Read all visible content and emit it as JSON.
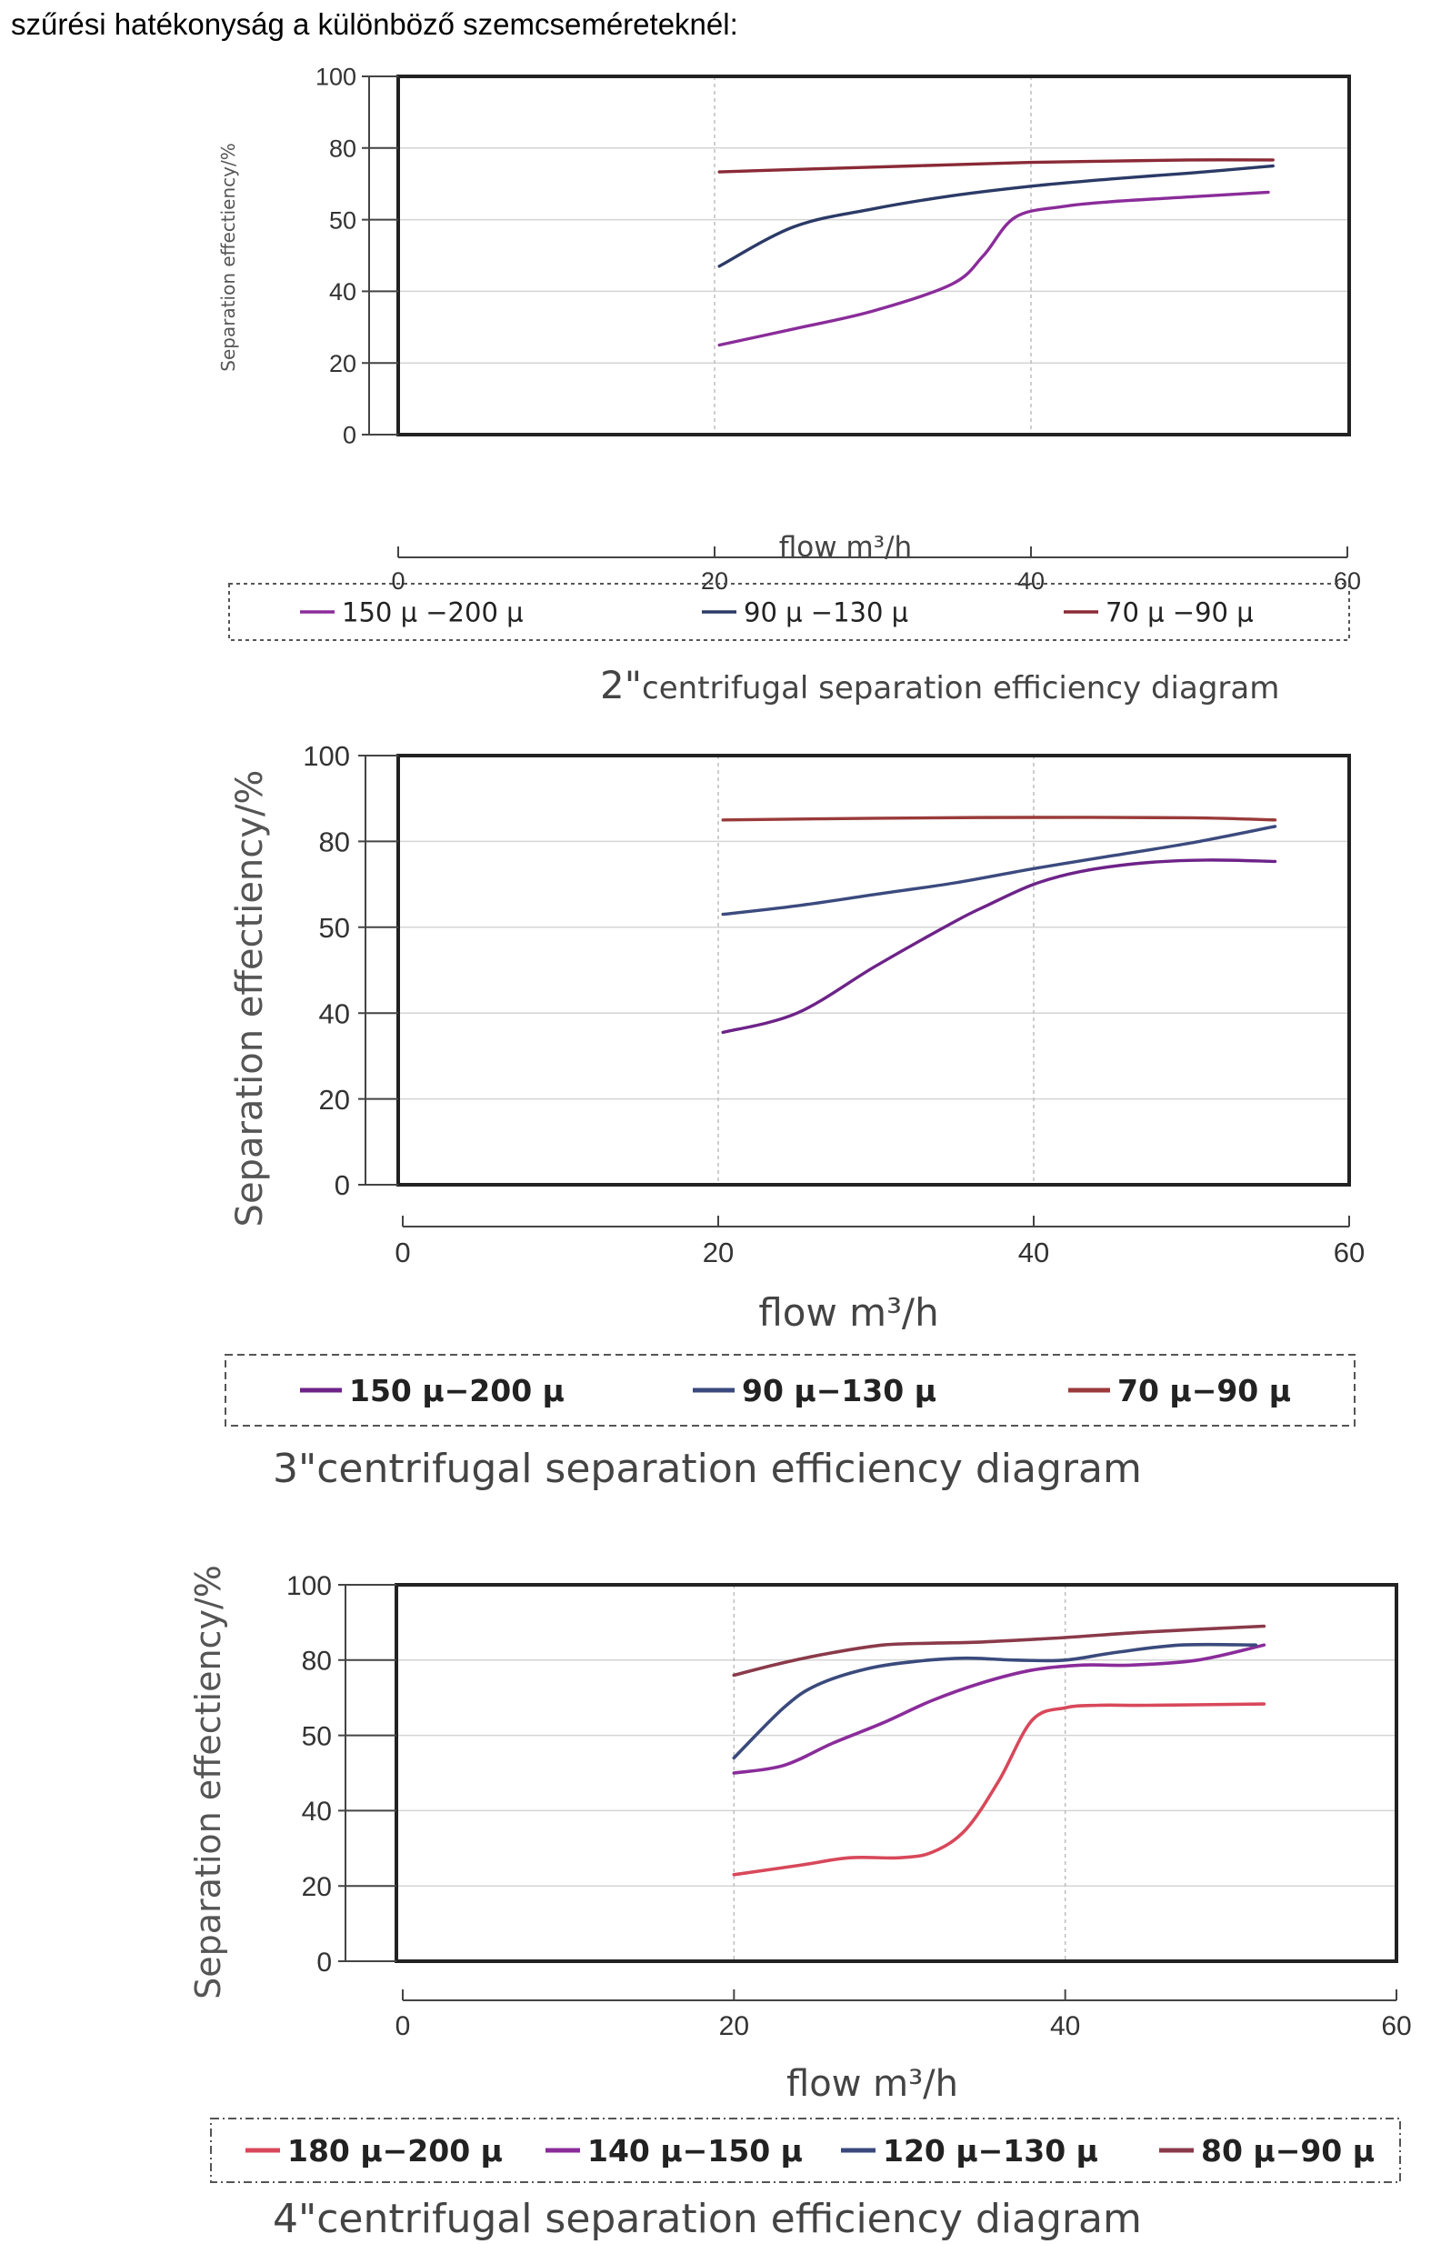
{
  "page": {
    "heading": "szűrési hatékonyság a különböző szemcseméreteknél:"
  },
  "chart_data": [
    {
      "type": "line",
      "caption_mark": "2\"",
      "caption_text": "centrifugal separation efficiency diagram",
      "xlabel": "flow m³/h",
      "ylabel": "Separation effectiency/%",
      "xlim": [
        0,
        60
      ],
      "x_ticks": [
        "0",
        "20",
        "40",
        "60"
      ],
      "y_ticks": [
        "0",
        "20",
        "40",
        "50",
        "80",
        "100"
      ],
      "grid": "vertical dotted at 20 and 40",
      "legend_placement": "below",
      "series": [
        {
          "name": "150 μ −200 μ",
          "color": "#8a2c9a",
          "x": [
            20.3,
            25,
            30,
            35,
            37,
            39,
            42,
            45,
            50,
            55
          ],
          "y": [
            25,
            29.5,
            34.5,
            41,
            45,
            51,
            55.5,
            57.5,
            59.5,
            61.5
          ]
        },
        {
          "name": "90 μ −130 μ",
          "color": "#2b3a66",
          "x": [
            20.3,
            25,
            30,
            35,
            40,
            45,
            50,
            55.3
          ],
          "y": [
            43.5,
            49,
            54.5,
            60,
            64,
            67,
            69.5,
            72.5
          ]
        },
        {
          "name": "70 μ −90 μ",
          "color": "#8a2a36",
          "x": [
            20.3,
            25,
            30,
            35,
            40,
            45,
            50,
            55.3
          ],
          "y": [
            70,
            71,
            72,
            73,
            74,
            74.5,
            75,
            75
          ]
        }
      ]
    },
    {
      "type": "line",
      "caption_mark": "3\"",
      "caption_text": "centrifugal separation efficiency diagram",
      "xlabel": "flow m³/h",
      "ylabel": "Separation effectiency/%",
      "xlim": [
        0,
        60
      ],
      "x_ticks": [
        "0",
        "20",
        "40",
        "60"
      ],
      "y_ticks": [
        "0",
        "20",
        "40",
        "50",
        "80",
        "100"
      ],
      "grid": "vertical dotted at 20 and 40",
      "legend_placement": "below",
      "series": [
        {
          "name": "150 μ−200 μ",
          "color": "#6d2388",
          "x": [
            20.3,
            25,
            30,
            35,
            37,
            40,
            43,
            47,
            51,
            55.3
          ],
          "y": [
            35.5,
            40,
            45.5,
            52,
            57.5,
            65,
            69.5,
            72.5,
            73.5,
            73
          ]
        },
        {
          "name": "90 μ−130 μ",
          "color": "#3b4a7e",
          "x": [
            20.3,
            25,
            30,
            35,
            40,
            45,
            50,
            55.3
          ],
          "y": [
            54.5,
            57.5,
            61.5,
            65.5,
            70.5,
            75,
            79.5,
            83.5
          ]
        },
        {
          "name": "70 μ−90 μ",
          "color": "#9a3a3a",
          "x": [
            20.3,
            30,
            40,
            50,
            55.3
          ],
          "y": [
            85,
            85.4,
            85.6,
            85.5,
            85
          ]
        }
      ]
    },
    {
      "type": "line",
      "caption_mark": "4\"",
      "caption_text": "centrifugal separation efficiency diagram",
      "xlabel": "flow m³/h",
      "ylabel": "Separation effectiency/%",
      "xlim": [
        0,
        60
      ],
      "x_ticks": [
        "0",
        "20",
        "40",
        "60"
      ],
      "y_ticks": [
        "0",
        "20",
        "40",
        "50",
        "80",
        "100"
      ],
      "grid": "vertical dotted at 20 and 40",
      "legend_placement": "below",
      "series": [
        {
          "name": "180 μ−200 μ",
          "color": "#d8485a",
          "x": [
            20,
            24,
            27,
            30,
            32,
            34,
            36,
            38,
            40,
            42,
            45,
            52
          ],
          "y": [
            23,
            25.5,
            27.5,
            27.5,
            29,
            35,
            44,
            56,
            61,
            62,
            62,
            62.5
          ]
        },
        {
          "name": "140 μ−150 μ",
          "color": "#8a2c9a",
          "x": [
            20,
            23,
            26,
            29,
            32,
            35,
            38,
            41,
            44,
            48,
            52
          ],
          "y": [
            45,
            46,
            49,
            55,
            64,
            71,
            76,
            78,
            78,
            80,
            84
          ]
        },
        {
          "name": "120 μ−130 μ",
          "color": "#3a4a7c",
          "x": [
            20,
            23,
            25,
            28,
            31,
            34,
            37,
            40,
            43,
            47,
            51.5
          ],
          "y": [
            47,
            61,
            70,
            76.5,
            79.5,
            80.5,
            80,
            80,
            82,
            84,
            84
          ]
        },
        {
          "name": "80 μ−90 μ",
          "color": "#8a3a4a",
          "x": [
            20,
            23,
            26,
            29,
            32,
            35,
            40,
            45,
            52
          ],
          "y": [
            74,
            79,
            82,
            84,
            84.5,
            84.8,
            86,
            87.5,
            89
          ]
        }
      ]
    }
  ]
}
